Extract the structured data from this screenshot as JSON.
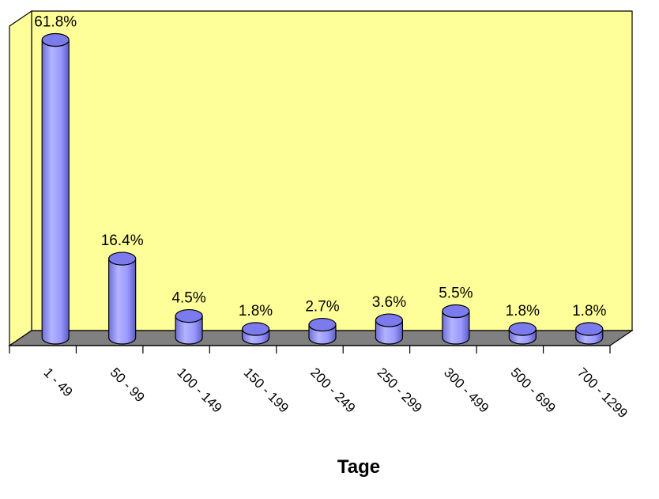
{
  "chart_data": {
    "type": "bar",
    "title": "",
    "xlabel": "Tage",
    "ylabel": "",
    "categories": [
      "1 - 49",
      "50 - 99",
      "100 - 149",
      "150 - 199",
      "200 - 249",
      "250 - 299",
      "300 - 499",
      "500 - 699",
      "700 - 1299"
    ],
    "values": [
      61.8,
      16.4,
      4.5,
      1.8,
      2.7,
      3.6,
      5.5,
      1.8,
      1.8
    ],
    "value_labels": [
      "61.8%",
      "16.4%",
      "4.5%",
      "1.8%",
      "2.7%",
      "3.6%",
      "5.5%",
      "1.8%",
      "1.8%"
    ],
    "unit": "%",
    "bar_shape": "3d-cylinder",
    "grid": false,
    "legend": "none",
    "colors": {
      "wall": "#FFFF99",
      "floor": "#808080",
      "bar_side": "#9999FF",
      "bar_top": "#7B7BEE",
      "outline": "#000000"
    }
  }
}
